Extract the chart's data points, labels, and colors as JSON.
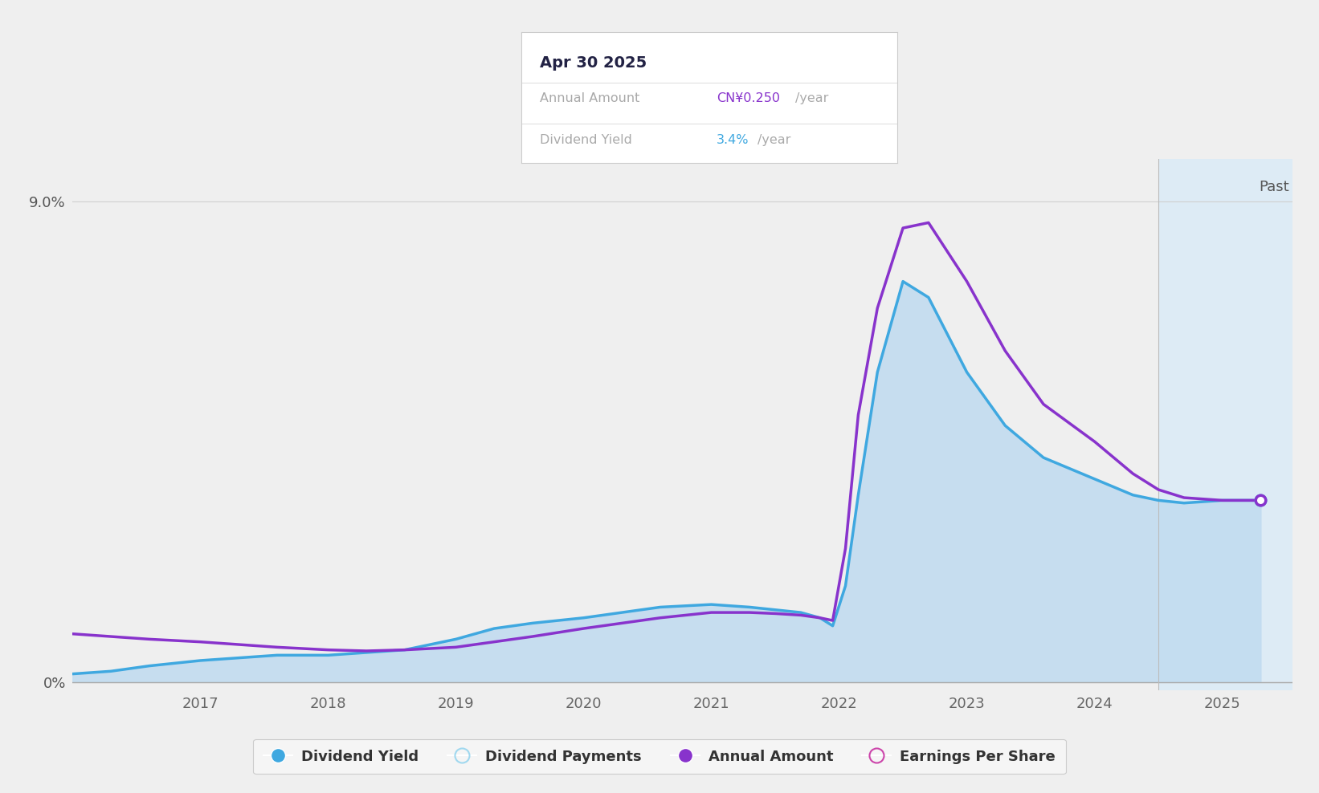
{
  "bg_color": "#efefef",
  "plot_bg_color": "#efefef",
  "past_bg_color": "#d8eaf8",
  "fill_color": "#c2dcf0",
  "line_blue_color": "#3fa8e0",
  "line_purple_color": "#8833cc",
  "past_start_x": 2024.5,
  "xmin": 2016.0,
  "xmax": 2025.55,
  "ymin": -0.15,
  "ymax": 9.8,
  "tooltip_date": "Apr 30 2025",
  "tooltip_annual_label": "Annual Amount",
  "tooltip_annual_value": "CN¥0.250",
  "tooltip_annual_unit": "/year",
  "tooltip_annual_color": "#8833cc",
  "tooltip_yield_label": "Dividend Yield",
  "tooltip_yield_value": "3.4%",
  "tooltip_yield_unit": "/year",
  "tooltip_yield_color": "#3fa8e0",
  "legend_items": [
    {
      "label": "Dividend Yield",
      "color": "#3fa8e0",
      "filled": true
    },
    {
      "label": "Dividend Payments",
      "color": "#a0d8ef",
      "filled": false
    },
    {
      "label": "Annual Amount",
      "color": "#8833cc",
      "filled": true
    },
    {
      "label": "Earnings Per Share",
      "color": "#cc44aa",
      "filled": false
    }
  ],
  "x_years": [
    2016.0,
    2016.3,
    2016.6,
    2017.0,
    2017.3,
    2017.6,
    2018.0,
    2018.3,
    2018.6,
    2019.0,
    2019.3,
    2019.6,
    2020.0,
    2020.3,
    2020.6,
    2021.0,
    2021.3,
    2021.5,
    2021.7,
    2021.85,
    2021.95,
    2022.05,
    2022.15,
    2022.3,
    2022.5,
    2022.7,
    2023.0,
    2023.3,
    2023.6,
    2024.0,
    2024.3,
    2024.5,
    2024.7,
    2025.0,
    2025.3
  ],
  "dividend_yield": [
    0.15,
    0.2,
    0.3,
    0.4,
    0.45,
    0.5,
    0.5,
    0.55,
    0.6,
    0.8,
    1.0,
    1.1,
    1.2,
    1.3,
    1.4,
    1.45,
    1.4,
    1.35,
    1.3,
    1.2,
    1.05,
    1.8,
    3.5,
    5.8,
    7.5,
    7.2,
    5.8,
    4.8,
    4.2,
    3.8,
    3.5,
    3.4,
    3.35,
    3.4,
    3.4
  ],
  "annual_amount": [
    0.9,
    0.85,
    0.8,
    0.75,
    0.7,
    0.65,
    0.6,
    0.58,
    0.6,
    0.65,
    0.75,
    0.85,
    1.0,
    1.1,
    1.2,
    1.3,
    1.3,
    1.28,
    1.25,
    1.2,
    1.15,
    2.5,
    5.0,
    7.0,
    8.5,
    8.6,
    7.5,
    6.2,
    5.2,
    4.5,
    3.9,
    3.6,
    3.45,
    3.4,
    3.4
  ]
}
